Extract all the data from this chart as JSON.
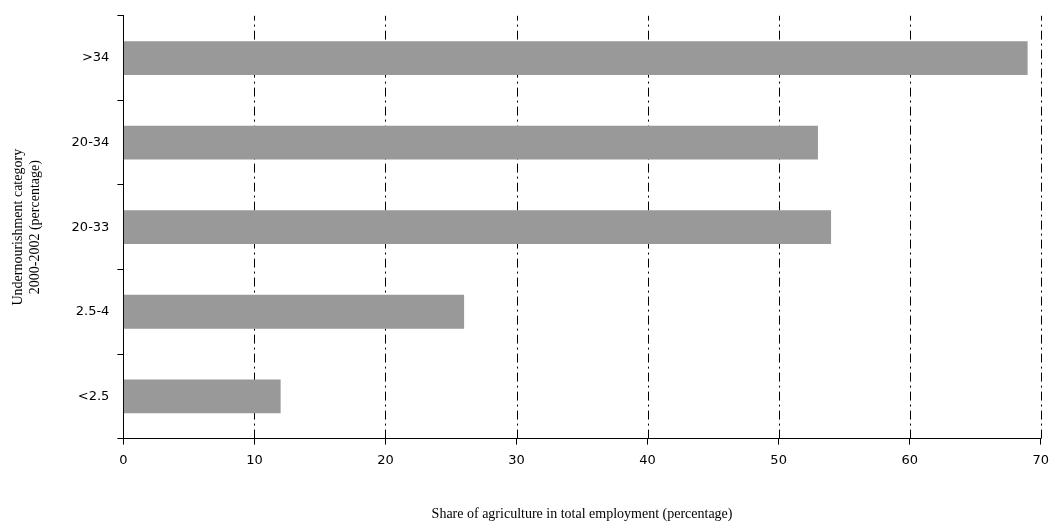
{
  "chart_data": {
    "type": "bar",
    "orientation": "horizontal",
    "xlabel": "Share of agriculture in total employment (percentage)",
    "ylabel": "Undernourishment category\n2000-2002 (percentage)",
    "categories": [
      ">34",
      "20-34",
      "20-33",
      "2.5-4",
      "<2.5"
    ],
    "values": [
      69,
      53,
      54,
      26,
      12
    ],
    "color": "#999999",
    "xlim": [
      0,
      70
    ],
    "xticks": [
      0,
      10,
      20,
      30,
      40,
      50,
      60,
      70
    ],
    "grid": "x"
  }
}
